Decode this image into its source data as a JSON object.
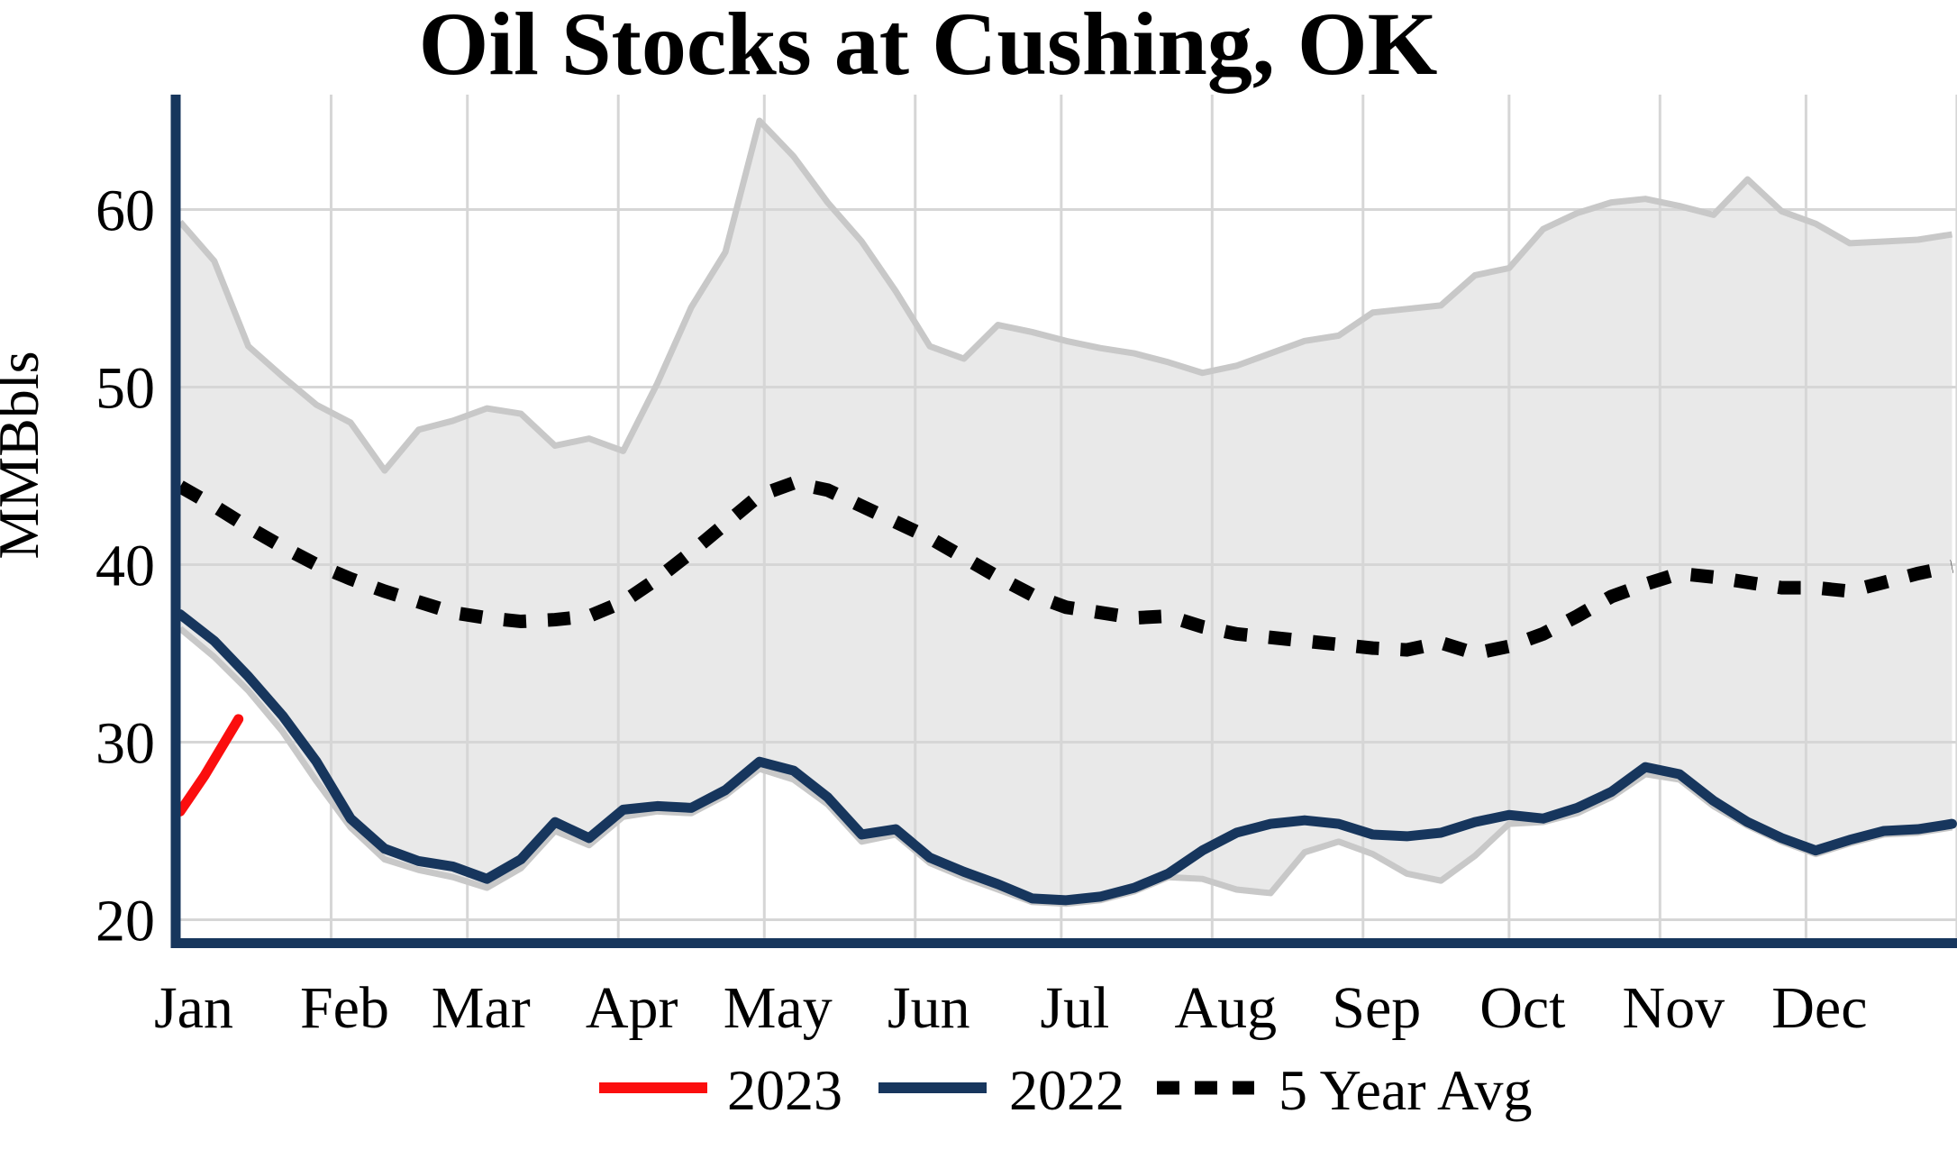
{
  "chart_data": {
    "type": "line",
    "title": "Oil Stocks at Cushing, OK",
    "ylabel": "MMBbls",
    "xlabel": "",
    "grid": true,
    "legend_position": "bottom-center",
    "y_ticks": [
      20,
      30,
      40,
      50,
      60
    ],
    "y_range": [
      19.3,
      67.5
    ],
    "x_tick_labels": [
      "Jan",
      "Feb",
      "Mar",
      "Apr",
      "May",
      "Jun",
      "Jul",
      "Aug",
      "Sep",
      "Oct",
      "Nov",
      "Dec"
    ],
    "month_start_days": [
      0,
      31,
      59,
      90,
      120,
      151,
      181,
      212,
      243,
      273,
      304,
      334,
      365
    ],
    "colors": {
      "red_2023": "#fb0e0e",
      "navy_2022": "#17365d",
      "avg_dotted": "#000000",
      "band_fill": "#e9e9e9",
      "band_edge": "#c8c8c8",
      "gridline": "#d6d6d6",
      "spine": "#17365d"
    },
    "legend": [
      {
        "label": "2023",
        "style": "solid",
        "color": "#fb0e0e"
      },
      {
        "label": "2022",
        "style": "solid",
        "color": "#17365d"
      },
      {
        "label": "5 Year Avg",
        "style": "dotted",
        "color": "#000000"
      }
    ],
    "series": [
      {
        "name": "5-year range band (top edge)",
        "id": "band_top",
        "x_weeks_start": 0,
        "values": [
          59.3,
          57.1,
          52.3,
          50.6,
          49.0,
          48.0,
          45.3,
          47.6,
          48.1,
          48.8,
          48.5,
          46.7,
          47.1,
          46.4,
          50.2,
          54.5,
          57.6,
          65.0,
          63.0,
          60.4,
          58.2,
          55.4,
          52.3,
          51.6,
          53.5,
          53.1,
          52.6,
          52.2,
          51.9,
          51.4,
          50.8,
          51.2,
          51.9,
          52.6,
          52.9,
          54.2,
          54.4,
          54.6,
          56.3,
          56.7,
          58.9,
          59.8,
          60.4,
          60.6,
          60.2,
          59.7,
          61.7,
          59.9,
          59.2,
          58.1,
          58.2,
          58.3,
          58.6
        ]
      },
      {
        "name": "5-year range band (bottom edge)",
        "id": "band_bottom",
        "x_weeks_start": 0,
        "values": [
          36.4,
          34.8,
          32.9,
          30.6,
          27.8,
          25.2,
          23.4,
          22.8,
          22.4,
          21.8,
          22.9,
          25.0,
          24.2,
          25.8,
          26.1,
          26.0,
          27.0,
          28.5,
          27.9,
          26.5,
          24.4,
          24.8,
          23.2,
          22.4,
          21.7,
          21.0,
          20.9,
          21.1,
          21.6,
          22.4,
          22.3,
          21.7,
          21.5,
          23.8,
          24.4,
          23.7,
          22.6,
          22.2,
          23.6,
          25.4,
          25.5,
          26.0,
          26.9,
          28.2,
          27.9,
          26.4,
          25.3,
          24.4,
          23.7,
          24.3,
          24.8,
          24.9,
          25.2
        ]
      },
      {
        "name": "2022",
        "id": "y2022",
        "x_weeks_start": 0,
        "values": [
          37.2,
          35.7,
          33.7,
          31.5,
          28.9,
          25.7,
          24.0,
          23.3,
          23.0,
          22.3,
          23.4,
          25.5,
          24.6,
          26.2,
          26.4,
          26.3,
          27.3,
          28.9,
          28.4,
          26.9,
          24.8,
          25.1,
          23.5,
          22.7,
          22.0,
          21.2,
          21.1,
          21.3,
          21.8,
          22.6,
          23.9,
          24.9,
          25.4,
          25.6,
          25.4,
          24.8,
          24.7,
          24.9,
          25.5,
          25.9,
          25.7,
          26.3,
          27.2,
          28.6,
          28.2,
          26.7,
          25.5,
          24.6,
          23.9,
          24.5,
          25.0,
          25.1,
          25.4
        ]
      },
      {
        "name": "5 Year Avg",
        "id": "avg5",
        "x_weeks_start": 0,
        "values": [
          44.4,
          43.3,
          42.1,
          41.0,
          40.0,
          39.2,
          38.5,
          37.9,
          37.3,
          37.0,
          36.8,
          36.9,
          37.1,
          37.9,
          39.2,
          40.7,
          42.3,
          43.9,
          44.6,
          44.2,
          43.3,
          42.4,
          41.5,
          40.4,
          39.3,
          38.3,
          37.6,
          37.3,
          37.0,
          37.1,
          36.5,
          36.1,
          35.9,
          35.7,
          35.5,
          35.3,
          35.2,
          35.6,
          35.0,
          35.4,
          36.1,
          37.1,
          38.2,
          38.9,
          39.5,
          39.3,
          39.0,
          38.7,
          38.7,
          38.5,
          39.0,
          39.5,
          39.9
        ]
      },
      {
        "name": "2023",
        "id": "y2023",
        "x_weeks": [
          0,
          0.71,
          1.71
        ],
        "values": [
          26.1,
          28.1,
          31.3
        ]
      }
    ]
  }
}
